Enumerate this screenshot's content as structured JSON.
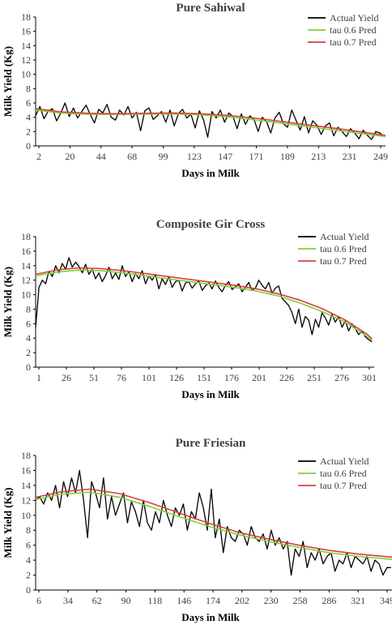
{
  "chart_data": [
    {
      "type": "line",
      "title": "Pure Sahiwal",
      "xlabel": "Days in Milk",
      "ylabel": "Milk Yield (Kg)",
      "ylim": [
        0,
        18
      ],
      "yticks": [
        "0",
        "2",
        "4",
        "6",
        "8",
        "10",
        "12",
        "14",
        "16",
        "18"
      ],
      "xlim": [
        2,
        252
      ],
      "xticks": [
        "2",
        "20",
        "44",
        "68",
        "99",
        "123",
        "147",
        "171",
        "189",
        "213",
        "231",
        "249"
      ],
      "legend": "top-right",
      "grid": false,
      "colors": {
        "actual": "#000000",
        "tau06": "#7fcf3f",
        "tau07": "#d9403a"
      },
      "series": [
        {
          "name": "Actual Yield",
          "x": [
            2,
            5,
            8,
            11,
            14,
            17,
            20,
            23,
            26,
            29,
            32,
            35,
            38,
            41,
            44,
            47,
            50,
            53,
            56,
            59,
            62,
            65,
            68,
            71,
            74,
            77,
            80,
            83,
            86,
            89,
            92,
            95,
            98,
            101,
            104,
            107,
            110,
            113,
            116,
            119,
            122,
            125,
            128,
            131,
            134,
            137,
            140,
            143,
            146,
            149,
            152,
            155,
            158,
            161,
            164,
            167,
            170,
            173,
            176,
            179,
            182,
            185,
            188,
            191,
            194,
            197,
            200,
            203,
            206,
            209,
            212,
            215,
            218,
            221,
            224,
            227,
            230,
            233,
            236,
            239,
            242,
            245,
            248,
            251
          ],
          "values": [
            4.2,
            5.5,
            3.8,
            4.9,
            5.2,
            3.5,
            4.6,
            6.0,
            4.1,
            5.3,
            3.9,
            4.8,
            5.7,
            4.4,
            3.2,
            5.1,
            4.6,
            5.8,
            4.0,
            3.6,
            5.0,
            4.3,
            5.5,
            3.9,
            4.7,
            2.1,
            4.9,
            5.3,
            3.7,
            4.2,
            4.8,
            3.3,
            5.0,
            2.8,
            4.5,
            5.1,
            3.9,
            4.4,
            2.5,
            4.9,
            3.6,
            1.2,
            4.8,
            3.9,
            5.0,
            3.3,
            4.6,
            4.1,
            2.4,
            4.5,
            3.0,
            4.2,
            3.7,
            2.0,
            4.0,
            3.4,
            1.8,
            3.9,
            4.7,
            3.1,
            2.6,
            5.0,
            3.6,
            2.2,
            4.1,
            1.8,
            3.5,
            2.9,
            1.6,
            2.8,
            3.2,
            1.4,
            2.6,
            2.0,
            1.3,
            2.4,
            1.8,
            1.0,
            2.2,
            1.5,
            0.9,
            2.0,
            1.8,
            1.3
          ]
        },
        {
          "name": "tau 0.6 Pred",
          "x": [
            2,
            20,
            40,
            60,
            80,
            100,
            120,
            140,
            160,
            180,
            200,
            220,
            240,
            252
          ],
          "values": [
            5.0,
            4.6,
            4.4,
            4.4,
            4.45,
            4.45,
            4.35,
            4.05,
            3.6,
            3.1,
            2.6,
            2.1,
            1.6,
            1.3
          ]
        },
        {
          "name": "tau 0.7 Pred",
          "x": [
            2,
            20,
            40,
            60,
            80,
            100,
            120,
            140,
            160,
            180,
            200,
            220,
            240,
            252
          ],
          "values": [
            5.2,
            4.75,
            4.55,
            4.5,
            4.55,
            4.6,
            4.5,
            4.25,
            3.85,
            3.35,
            2.85,
            2.35,
            1.8,
            1.45
          ]
        }
      ]
    },
    {
      "type": "line",
      "title": "Composite  Gir Cross",
      "xlabel": "Days in Milk",
      "ylabel": "Milk Yield (Kg)",
      "ylim": [
        0,
        18
      ],
      "yticks": [
        "0",
        "2",
        "4",
        "6",
        "8",
        "10",
        "12",
        "14",
        "16",
        "18"
      ],
      "xlim": [
        1,
        306
      ],
      "xticks": [
        "1",
        "26",
        "51",
        "76",
        "101",
        "126",
        "151",
        "176",
        "201",
        "226",
        "251",
        "276",
        "301"
      ],
      "legend": "top-right",
      "grid": false,
      "colors": {
        "actual": "#000000",
        "tau06": "#7fcf3f",
        "tau07": "#d9403a"
      },
      "series": [
        {
          "name": "Actual Yield",
          "x": [
            1,
            4,
            7,
            10,
            13,
            16,
            19,
            22,
            25,
            28,
            31,
            34,
            37,
            40,
            43,
            46,
            49,
            52,
            55,
            58,
            61,
            64,
            67,
            70,
            73,
            76,
            79,
            82,
            85,
            88,
            91,
            94,
            97,
            100,
            103,
            106,
            109,
            112,
            115,
            118,
            121,
            124,
            127,
            130,
            133,
            136,
            139,
            142,
            145,
            148,
            151,
            154,
            157,
            160,
            163,
            166,
            169,
            172,
            175,
            178,
            181,
            184,
            187,
            190,
            193,
            196,
            199,
            202,
            205,
            208,
            211,
            214,
            217,
            220,
            223,
            226,
            229,
            232,
            235,
            238,
            241,
            244,
            247,
            250,
            253,
            256,
            259,
            262,
            265,
            268,
            271,
            274,
            277,
            280,
            283,
            286,
            289,
            292,
            295,
            298,
            301,
            304
          ],
          "values": [
            5.5,
            11.0,
            12.0,
            11.5,
            13.2,
            12.5,
            14.0,
            13.0,
            14.3,
            13.5,
            15.1,
            13.8,
            14.5,
            13.9,
            13.0,
            14.2,
            12.8,
            13.5,
            12.2,
            13.0,
            11.8,
            12.6,
            13.8,
            12.2,
            13.0,
            12.1,
            14.0,
            12.5,
            13.2,
            11.8,
            12.9,
            12.2,
            13.3,
            11.5,
            12.6,
            12.0,
            12.8,
            10.8,
            12.2,
            11.4,
            12.5,
            11.0,
            11.8,
            12.0,
            10.5,
            11.6,
            11.8,
            10.9,
            11.5,
            11.9,
            10.6,
            11.2,
            11.6,
            10.8,
            11.9,
            11.0,
            10.4,
            11.3,
            11.8,
            10.7,
            11.1,
            11.5,
            10.4,
            11.0,
            11.7,
            10.6,
            10.9,
            12.0,
            11.3,
            10.8,
            11.7,
            10.2,
            10.9,
            11.2,
            9.5,
            9.0,
            8.5,
            7.5,
            6.0,
            8.0,
            5.5,
            7.0,
            6.5,
            4.5,
            6.6,
            5.5,
            7.5,
            6.8,
            5.8,
            7.3,
            6.2,
            7.0,
            5.5,
            6.4,
            5.0,
            6.0,
            5.3,
            4.5,
            5.0,
            4.2,
            3.8,
            3.5
          ]
        },
        {
          "name": "tau 0.6 Pred",
          "x": [
            1,
            20,
            40,
            60,
            80,
            100,
            120,
            140,
            160,
            180,
            200,
            220,
            240,
            260,
            280,
            300,
            304
          ],
          "values": [
            12.6,
            13.1,
            13.4,
            13.3,
            13.0,
            12.6,
            12.2,
            11.8,
            11.4,
            11.0,
            10.5,
            9.8,
            8.8,
            7.6,
            6.2,
            4.2,
            3.7
          ]
        },
        {
          "name": "tau 0.7 Pred",
          "x": [
            1,
            20,
            40,
            60,
            80,
            100,
            120,
            140,
            160,
            180,
            200,
            220,
            240,
            260,
            280,
            300,
            304
          ],
          "values": [
            12.8,
            13.4,
            13.7,
            13.6,
            13.3,
            12.9,
            12.5,
            12.1,
            11.7,
            11.3,
            10.8,
            10.1,
            9.2,
            8.0,
            6.5,
            4.5,
            3.9
          ]
        }
      ]
    },
    {
      "type": "line",
      "title": "Pure Friesian",
      "xlabel": "Days in Milk",
      "ylabel": "Milk Yield (Kg)",
      "ylim": [
        0,
        18
      ],
      "yticks": [
        "0",
        "2",
        "4",
        "6",
        "8",
        "10",
        "12",
        "14",
        "16",
        "18"
      ],
      "xlim": [
        6,
        363
      ],
      "xticks": [
        "6",
        "34",
        "62",
        "90",
        "118",
        "146",
        "174",
        "202",
        "230",
        "258",
        "286",
        "321",
        "349"
      ],
      "legend": "top-right",
      "grid": false,
      "colors": {
        "actual": "#000000",
        "tau06": "#7fcf3f",
        "tau07": "#d9403a"
      },
      "series": [
        {
          "name": "Actual Yield",
          "x": [
            6,
            10,
            14,
            18,
            22,
            26,
            30,
            34,
            38,
            42,
            46,
            50,
            54,
            58,
            62,
            66,
            70,
            74,
            78,
            82,
            86,
            90,
            94,
            98,
            102,
            106,
            110,
            114,
            118,
            122,
            126,
            130,
            134,
            138,
            142,
            146,
            150,
            154,
            158,
            162,
            166,
            170,
            174,
            178,
            182,
            186,
            190,
            194,
            198,
            202,
            206,
            210,
            214,
            218,
            222,
            226,
            230,
            234,
            238,
            242,
            246,
            250,
            254,
            258,
            262,
            266,
            270,
            274,
            278,
            282,
            286,
            290,
            294,
            298,
            302,
            306,
            310,
            314,
            318,
            322,
            326,
            330,
            334,
            338,
            342,
            346,
            350,
            354,
            358,
            362
          ],
          "values": [
            12.0,
            12.5,
            11.5,
            13.0,
            12.0,
            14.0,
            11.0,
            14.5,
            12.5,
            15.0,
            13.0,
            16.0,
            12.0,
            7.0,
            14.5,
            13.0,
            11.0,
            15.0,
            9.5,
            12.5,
            10.0,
            11.5,
            13.0,
            9.0,
            11.8,
            10.5,
            8.5,
            12.0,
            9.0,
            8.0,
            10.5,
            9.0,
            12.0,
            10.0,
            8.5,
            11.0,
            10.0,
            11.5,
            8.0,
            10.5,
            9.5,
            13.0,
            11.0,
            8.0,
            13.5,
            7.0,
            9.5,
            5.0,
            8.5,
            7.0,
            6.5,
            8.0,
            7.5,
            6.0,
            8.5,
            7.0,
            6.5,
            7.5,
            5.5,
            8.0,
            6.0,
            7.0,
            5.5,
            6.5,
            2.0,
            5.5,
            4.5,
            6.5,
            3.0,
            5.0,
            4.0,
            5.5,
            3.5,
            4.5,
            5.0,
            2.5,
            4.0,
            3.5,
            5.0,
            3.0,
            4.5,
            4.0,
            3.5,
            4.5,
            2.5,
            4.0,
            3.5,
            2.0,
            3.0,
            3.0
          ]
        },
        {
          "name": "tau 0.6 Pred",
          "x": [
            6,
            30,
            60,
            90,
            120,
            150,
            180,
            210,
            240,
            270,
            300,
            330,
            363
          ],
          "values": [
            12.1,
            12.8,
            13.1,
            12.4,
            11.2,
            9.8,
            8.5,
            7.4,
            6.5,
            5.7,
            5.0,
            4.5,
            4.1
          ]
        },
        {
          "name": "tau 0.7 Pred",
          "x": [
            6,
            30,
            60,
            90,
            120,
            150,
            180,
            210,
            240,
            270,
            300,
            330,
            363
          ],
          "values": [
            12.4,
            13.1,
            13.5,
            12.9,
            11.7,
            10.3,
            8.9,
            7.7,
            6.8,
            6.0,
            5.3,
            4.8,
            4.4
          ]
        }
      ]
    }
  ]
}
